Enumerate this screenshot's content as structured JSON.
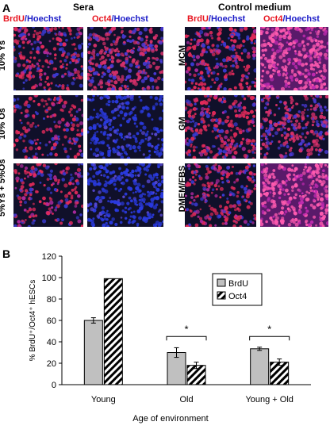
{
  "panel_a": {
    "letter": "A",
    "sera": {
      "title": "Sera",
      "col1": {
        "part1": "BrdU",
        "part2": "/Hoechst"
      },
      "col2": {
        "part1": "Oct4",
        "part2": "/Hoechst"
      },
      "rows": [
        "10% Ys",
        "10% Os",
        "5%Ys + 5%Os"
      ]
    },
    "control": {
      "title": "Control medium",
      "col1": {
        "part1": "BrdU",
        "part2": "/Hoechst"
      },
      "col2": {
        "part1": "Oct4",
        "part2": "/Hoechst"
      },
      "rows": [
        "MCM",
        "GM",
        "DMEM/FBS"
      ]
    },
    "colors": {
      "brdu": "#e8141f",
      "hoechst": "#1c1cc8",
      "oct4": "#e8141f"
    }
  },
  "panel_b": {
    "letter": "B",
    "significance": [
      "*",
      "*"
    ]
  },
  "chart_data": {
    "type": "bar",
    "categories": [
      "Young",
      "Old",
      "Young + Old"
    ],
    "series": [
      {
        "name": "BrdU",
        "values": [
          60,
          30,
          33.5
        ],
        "errors": [
          2.5,
          4.5,
          1.5
        ],
        "color": "#c0c0c0",
        "pattern": "solid"
      },
      {
        "name": "Oct4",
        "values": [
          99,
          18,
          21
        ],
        "errors": [
          0,
          3,
          3
        ],
        "color": "#ffffff",
        "pattern": "hatch"
      }
    ],
    "ylabel": "% BrdU⁺/Oct4⁺ hESCs",
    "xlabel": "Age of environment",
    "ylim": [
      0,
      120
    ],
    "yticks": [
      0,
      20,
      40,
      60,
      80,
      100,
      120
    ],
    "legend": "top-right",
    "grid": false
  }
}
